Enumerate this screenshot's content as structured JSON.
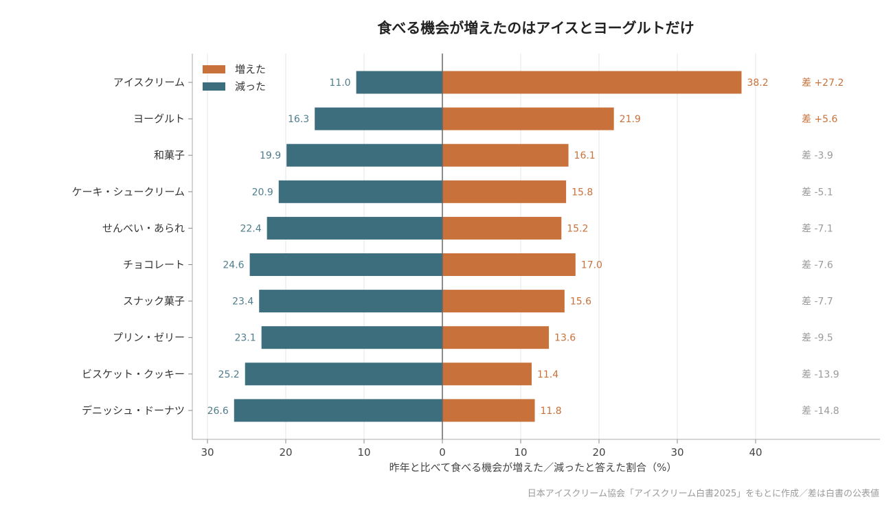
{
  "chart_data": {
    "type": "bar",
    "orientation": "horizontal-diverging",
    "title": "食べる機会が増えたのはアイスとヨーグルトだけ",
    "xlabel": "昨年と比べて食べる機会が増えた／減ったと答えた割合（%）",
    "xlim": [
      -30,
      40
    ],
    "xticks": [
      -30,
      -20,
      -10,
      0,
      10,
      20,
      30,
      40
    ],
    "xtick_labels": [
      "30",
      "20",
      "10",
      "0",
      "10",
      "20",
      "30",
      "40"
    ],
    "grid": "vertical",
    "legend_position": "top-left",
    "categories": [
      "アイスクリーム",
      "ヨーグルト",
      "和菓子",
      "ケーキ・シュークリーム",
      "せんべい・あられ",
      "チョコレート",
      "スナック菓子",
      "プリン・ゼリー",
      "ビスケット・クッキー",
      "デニッシュ・ドーナツ"
    ],
    "series": [
      {
        "name": "増えた",
        "color": "#c8713a",
        "values": [
          38.2,
          21.9,
          16.1,
          15.8,
          15.2,
          17.0,
          15.6,
          13.6,
          11.4,
          11.8
        ]
      },
      {
        "name": "減った",
        "color": "#3d6e7e",
        "values": [
          11.0,
          16.3,
          19.9,
          20.9,
          22.4,
          24.6,
          23.4,
          23.1,
          25.2,
          26.6
        ]
      }
    ],
    "increase_labels": [
      "38.2",
      "21.9",
      "16.1",
      "15.8",
      "15.2",
      "17.0",
      "15.6",
      "13.6",
      "11.4",
      "11.8"
    ],
    "decrease_labels": [
      "11.0",
      "16.3",
      "19.9",
      "20.9",
      "22.4",
      "24.6",
      "23.4",
      "23.1",
      "25.2",
      "26.6"
    ],
    "differences": [
      "差 +27.2",
      "差 +5.6",
      "差 -3.9",
      "差 -5.1",
      "差 -7.1",
      "差 -7.6",
      "差 -7.7",
      "差 -9.5",
      "差 -13.9",
      "差 -14.8"
    ],
    "difference_colors": {
      "positive": "#c8713a",
      "negative": "#9a9a9a"
    },
    "source_note": "日本アイスクリーム協会「アイスクリーム白書2025」をもとに作成／差は白書の公表値"
  }
}
